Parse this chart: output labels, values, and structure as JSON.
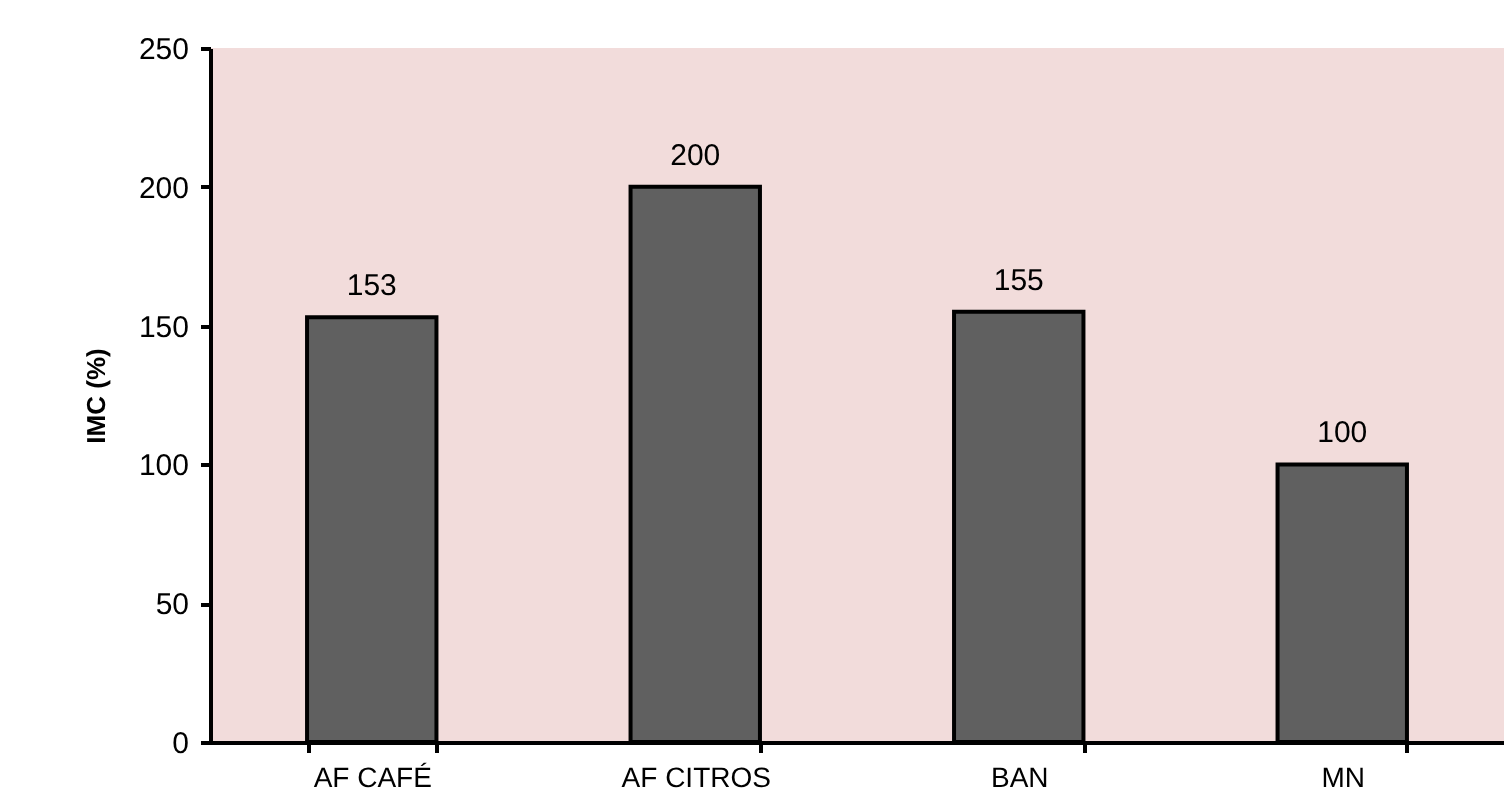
{
  "chart_data": {
    "type": "bar",
    "ylabel": "IMC (%)",
    "categories": [
      "AF CAFÉ",
      "AF CITROS",
      "BAN",
      "MN"
    ],
    "values": [
      153,
      200,
      155,
      100
    ],
    "color": "#606060",
    "ylim": [
      0,
      250
    ],
    "yticks": [
      0,
      50,
      100,
      150,
      200,
      250
    ],
    "data_labels": true
  }
}
